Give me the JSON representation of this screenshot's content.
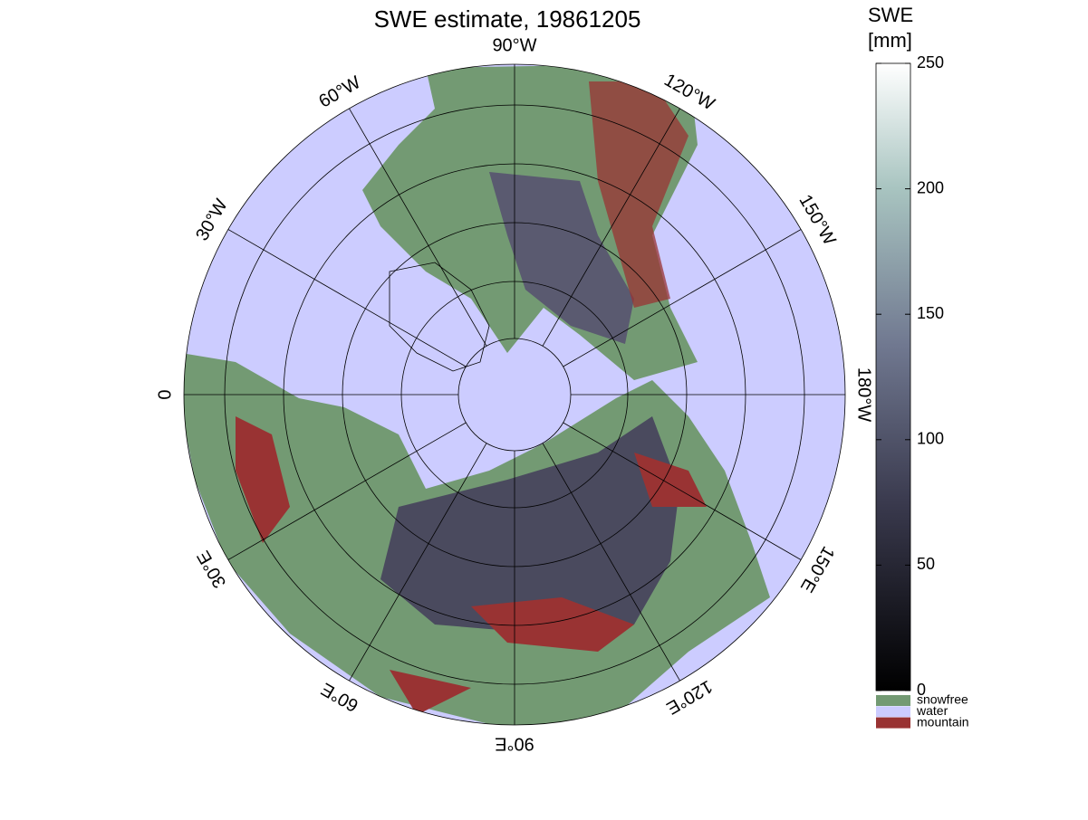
{
  "title": "SWE estimate, 19861205",
  "colorbar": {
    "label_top": "SWE",
    "label_unit": "[mm]",
    "lim": [
      0,
      250
    ],
    "ticks": [
      0,
      50,
      100,
      150,
      200,
      250
    ]
  },
  "legend": [
    {
      "label": "snowfree",
      "color": "#739a73"
    },
    {
      "label": "water",
      "color": "#ccccff"
    },
    {
      "label": "mountain",
      "color": "#993333"
    }
  ],
  "longitude_labels": [
    "90°W",
    "120°W",
    "150°W",
    "180°W",
    "150°E",
    "120°E",
    "90°E",
    "60°E",
    "30°E",
    "0",
    "30°W",
    "60°W"
  ]
}
